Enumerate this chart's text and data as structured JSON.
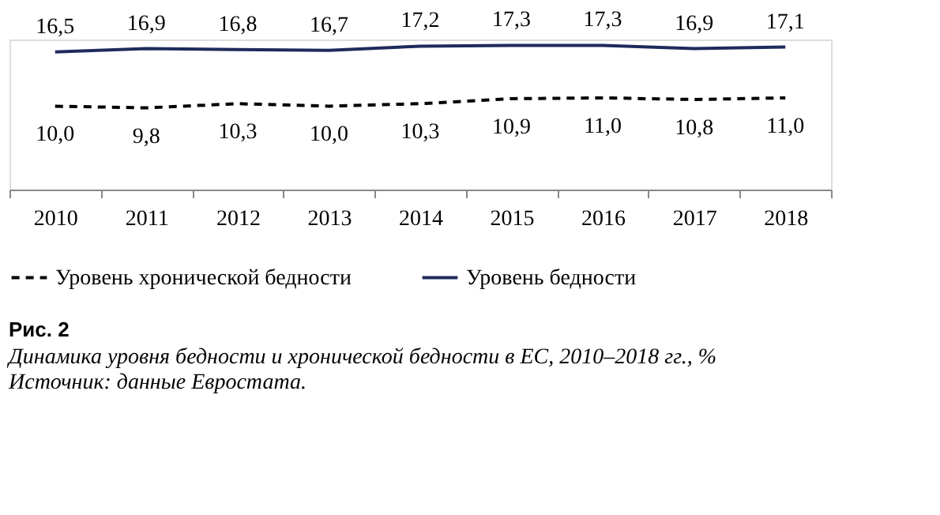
{
  "chart_data": {
    "type": "line",
    "title": "Рис. 2",
    "subtitle": "Динамика уровня бедности и хронической бедности в ЕС, 2010–2018 гг., %",
    "annotations": [
      "Источник: данные Евростата."
    ],
    "categories": [
      "2010",
      "2011",
      "2012",
      "2013",
      "2014",
      "2015",
      "2016",
      "2017",
      "2018"
    ],
    "series": [
      {
        "name": "Уровень хронической бедности",
        "color": "#000000",
        "line_style": "dashed",
        "values": [
          10.0,
          9.8,
          10.3,
          10.0,
          10.3,
          10.9,
          11.0,
          10.8,
          11.0
        ],
        "value_labels": [
          "10,0",
          "9,8",
          "10,3",
          "10,0",
          "10,3",
          "10,9",
          "11,0",
          "10,8",
          "11,0"
        ]
      },
      {
        "name": "Уровень бедности",
        "color": "#1f2a5c",
        "line_style": "solid",
        "values": [
          16.5,
          16.9,
          16.8,
          16.7,
          17.2,
          17.3,
          17.3,
          16.9,
          17.1
        ],
        "value_labels": [
          "16,5",
          "16,9",
          "16,8",
          "16,7",
          "17,2",
          "17,3",
          "17,3",
          "16,9",
          "17,1"
        ]
      }
    ],
    "data_labels": true,
    "legend": "bottom",
    "grid": false,
    "marker": "none",
    "tick_labels": "x"
  }
}
